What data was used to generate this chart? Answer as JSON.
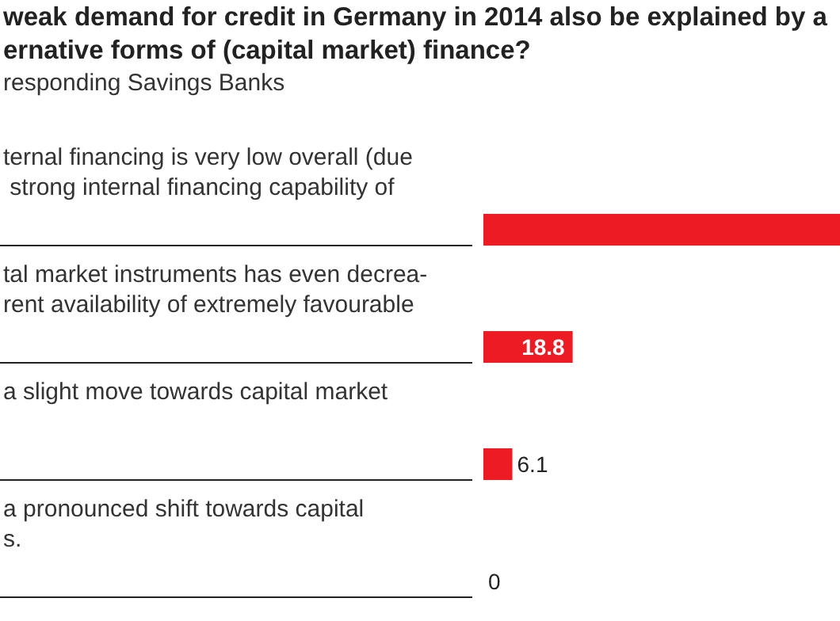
{
  "chart_data": {
    "type": "bar",
    "orientation": "horizontal",
    "title": "weak demand for credit in Germany in 2014 also be explained by a\nernative forms of (capital market) finance?",
    "subtitle": "responding Savings Banks",
    "categories": [
      "ternal financing is very low overall (due\n strong internal financing capability of",
      "tal market instruments has even decrea-\nrent availability of extremely favourable",
      "a slight move towards capital market",
      "a pronounced shift towards capital\ns."
    ],
    "values": [
      75.1,
      18.8,
      6.1,
      0
    ],
    "color": "#ed1c24",
    "value_labels": [
      null,
      "18.8",
      "6.1",
      "0"
    ]
  }
}
